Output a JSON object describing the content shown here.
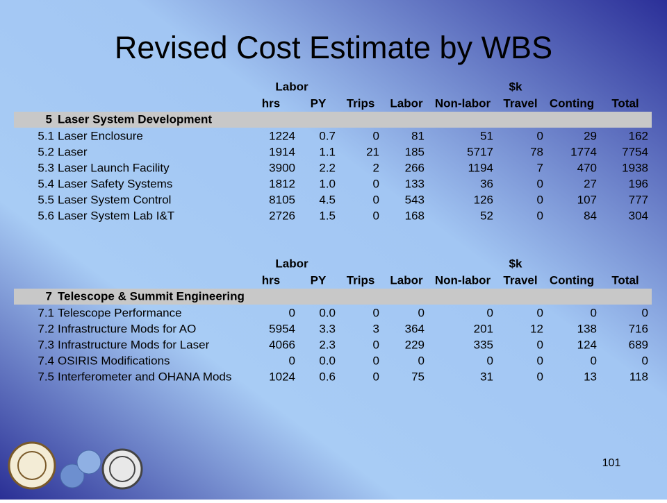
{
  "title": "Revised Cost Estimate by WBS",
  "page_number": "101",
  "tables": [
    {
      "group_headers": [
        "Labor",
        "$k"
      ],
      "columns": [
        "hrs",
        "PY",
        "Trips",
        "Labor",
        "Non-labor",
        "Travel",
        "Conting",
        "Total"
      ],
      "section": {
        "id": "5",
        "name": "Laser System Development"
      },
      "rows": [
        {
          "id": "5.1",
          "name": "Laser Enclosure",
          "cells": [
            "1224",
            "0.7",
            "0",
            "81",
            "51",
            "0",
            "29",
            "162"
          ]
        },
        {
          "id": "5.2",
          "name": "Laser",
          "cells": [
            "1914",
            "1.1",
            "21",
            "185",
            "5717",
            "78",
            "1774",
            "7754"
          ]
        },
        {
          "id": "5.3",
          "name": "Laser Launch Facility",
          "cells": [
            "3900",
            "2.2",
            "2",
            "266",
            "1194",
            "7",
            "470",
            "1938"
          ]
        },
        {
          "id": "5.4",
          "name": "Laser Safety Systems",
          "cells": [
            "1812",
            "1.0",
            "0",
            "133",
            "36",
            "0",
            "27",
            "196"
          ]
        },
        {
          "id": "5.5",
          "name": "Laser System Control",
          "cells": [
            "8105",
            "4.5",
            "0",
            "543",
            "126",
            "0",
            "107",
            "777"
          ]
        },
        {
          "id": "5.6",
          "name": "Laser System Lab I&T",
          "cells": [
            "2726",
            "1.5",
            "0",
            "168",
            "52",
            "0",
            "84",
            "304"
          ]
        }
      ]
    },
    {
      "group_headers": [
        "Labor",
        "$k"
      ],
      "columns": [
        "hrs",
        "PY",
        "Trips",
        "Labor",
        "Non-labor",
        "Travel",
        "Conting",
        "Total"
      ],
      "section": {
        "id": "7",
        "name": "Telescope & Summit Engineering"
      },
      "rows": [
        {
          "id": "7.1",
          "name": "Telescope Performance",
          "cells": [
            "0",
            "0.0",
            "0",
            "0",
            "0",
            "0",
            "0",
            "0"
          ]
        },
        {
          "id": "7.2",
          "name": "Infrastructure Mods for AO",
          "cells": [
            "5954",
            "3.3",
            "3",
            "364",
            "201",
            "12",
            "138",
            "716"
          ]
        },
        {
          "id": "7.3",
          "name": "Infrastructure Mods for Laser",
          "cells": [
            "4066",
            "2.3",
            "0",
            "229",
            "335",
            "0",
            "124",
            "689"
          ]
        },
        {
          "id": "7.4",
          "name": "OSIRIS Modifications",
          "cells": [
            "0",
            "0.0",
            "0",
            "0",
            "0",
            "0",
            "0",
            "0"
          ]
        },
        {
          "id": "7.5",
          "name": "Interferometer and OHANA Mods",
          "cells": [
            "1024",
            "0.6",
            "0",
            "75",
            "31",
            "0",
            "13",
            "118"
          ]
        }
      ]
    }
  ]
}
